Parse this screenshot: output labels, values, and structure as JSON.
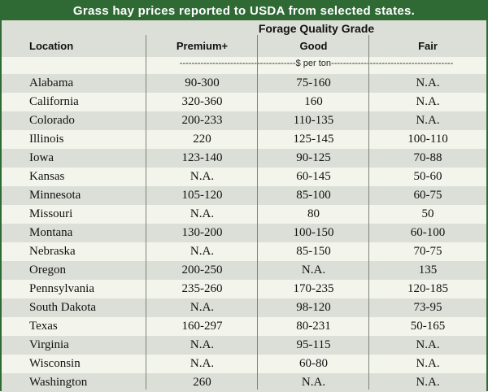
{
  "title": "Grass hay prices reported to USDA from selected states.",
  "header": {
    "location": "Location",
    "group": "Forage Quality Grade",
    "columns": [
      "Premium+",
      "Good",
      "Fair"
    ]
  },
  "unit_label": "---------------------------------------$ per ton-----------------------------------------",
  "rows": [
    {
      "location": "Alabama",
      "premium": "90-300",
      "good": "75-160",
      "fair": "N.A."
    },
    {
      "location": "California",
      "premium": "320-360",
      "good": "160",
      "fair": "N.A."
    },
    {
      "location": "Colorado",
      "premium": "200-233",
      "good": "110-135",
      "fair": "N.A."
    },
    {
      "location": "Illinois",
      "premium": "220",
      "good": "125-145",
      "fair": "100-110"
    },
    {
      "location": "Iowa",
      "premium": "123-140",
      "good": "90-125",
      "fair": "70-88"
    },
    {
      "location": "Kansas",
      "premium": "N.A.",
      "good": "60-145",
      "fair": "50-60"
    },
    {
      "location": "Minnesota",
      "premium": "105-120",
      "good": "85-100",
      "fair": "60-75"
    },
    {
      "location": "Missouri",
      "premium": "N.A.",
      "good": "80",
      "fair": "50"
    },
    {
      "location": "Montana",
      "premium": "130-200",
      "good": "100-150",
      "fair": "60-100"
    },
    {
      "location": "Nebraska",
      "premium": "N.A.",
      "good": "85-150",
      "fair": "70-75"
    },
    {
      "location": "Oregon",
      "premium": "200-250",
      "good": "N.A.",
      "fair": "135"
    },
    {
      "location": "Pennsylvania",
      "premium": "235-260",
      "good": "170-235",
      "fair": "120-185"
    },
    {
      "location": "South Dakota",
      "premium": "N.A.",
      "good": "98-120",
      "fair": "73-95"
    },
    {
      "location": "Texas",
      "premium": "160-297",
      "good": "80-231",
      "fair": "50-165"
    },
    {
      "location": "Virginia",
      "premium": "N.A.",
      "good": "95-115",
      "fair": "N.A."
    },
    {
      "location": "Wisconsin",
      "premium": "N.A.",
      "good": "60-80",
      "fair": "N.A."
    },
    {
      "location": "Washington",
      "premium": "260",
      "good": "N.A.",
      "fair": "N.A."
    }
  ],
  "colors": {
    "title_bg": "#2f6a35",
    "band": "#dcdfd7",
    "base": "#f3f5ec"
  }
}
